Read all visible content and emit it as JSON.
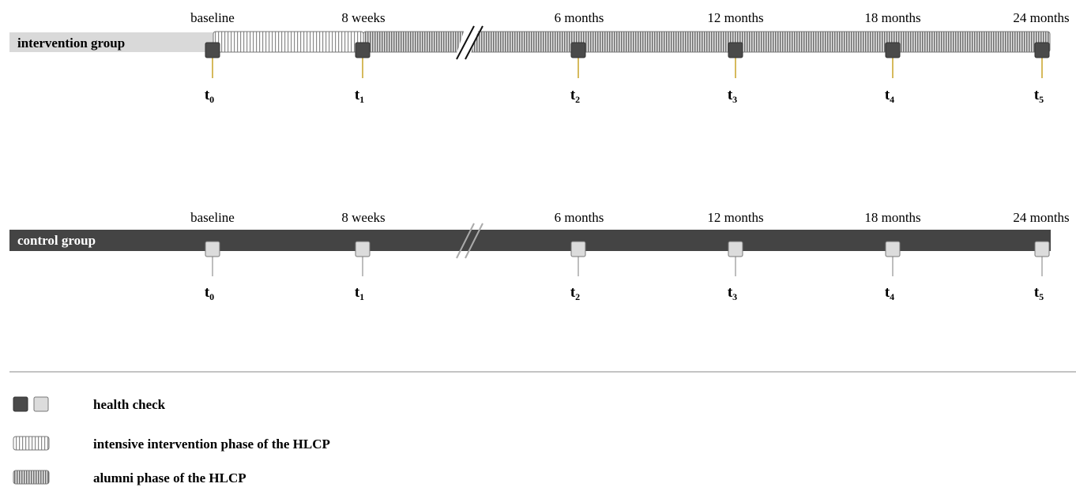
{
  "timepoints": [
    {
      "label": "baseline",
      "t": "t",
      "sub": "0"
    },
    {
      "label": "8 weeks",
      "t": "t",
      "sub": "1"
    },
    {
      "label": "6 months",
      "t": "t",
      "sub": "2"
    },
    {
      "label": "12 months",
      "t": "t",
      "sub": "3"
    },
    {
      "label": "18 months",
      "t": "t",
      "sub": "4"
    },
    {
      "label": "24 months",
      "t": "t",
      "sub": "5"
    }
  ],
  "groups": {
    "intervention": {
      "label": "intervention group"
    },
    "control": {
      "label": "control group"
    }
  },
  "legend": {
    "health_check": "health check",
    "intensive": "intensive intervention phase of the HLCP",
    "alumni": "alumni phase of the HLCP"
  },
  "colors": {
    "dark": "#4a4a4a",
    "light_grey": "#d9d9d9",
    "box_light": "#dcdcdc",
    "stem_gold": "#c9a227",
    "stem_grey": "#a8a8a8",
    "hatch_stripe": "#7a7a7a"
  }
}
